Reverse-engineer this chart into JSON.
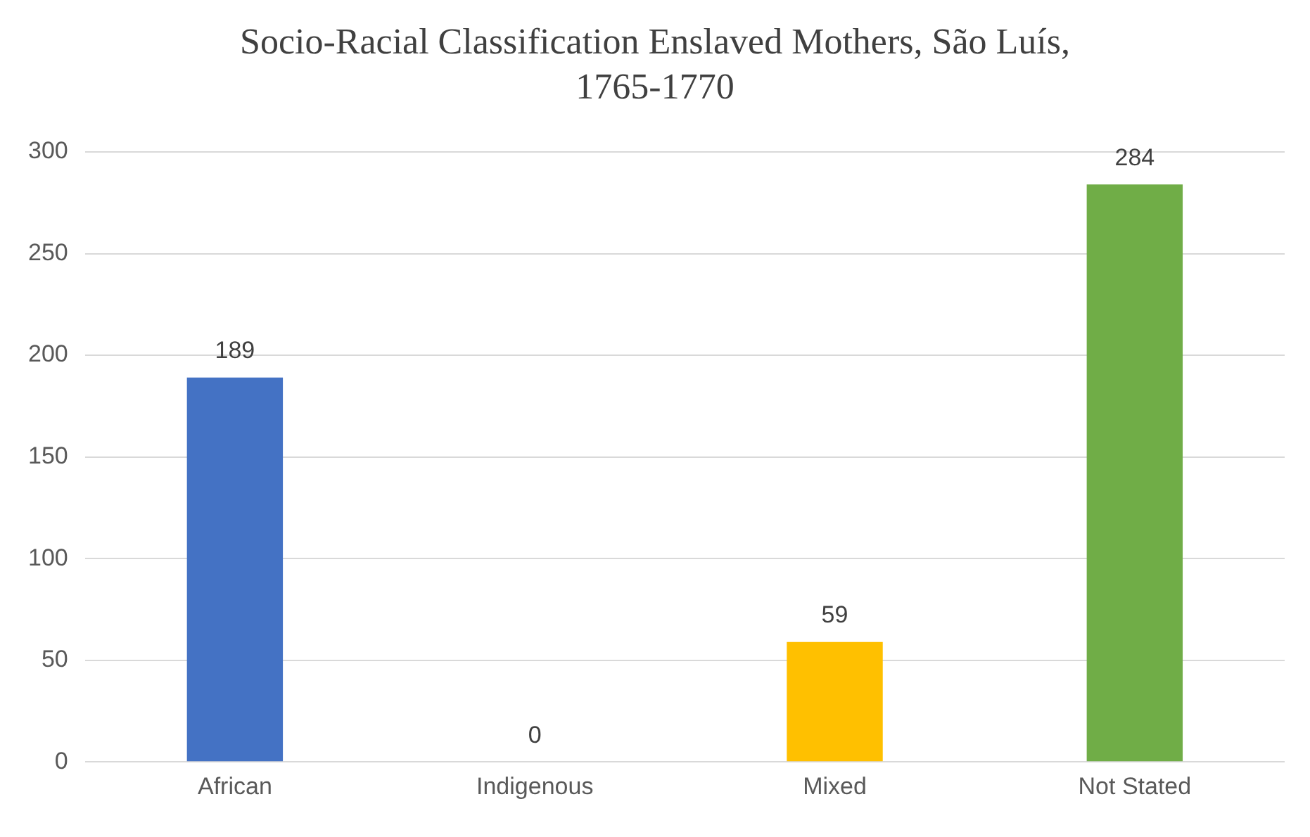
{
  "chart_data": {
    "type": "bar",
    "title": "Socio-Racial Classification Enslaved Mothers, São Luís, 1765-1770",
    "categories": [
      "African",
      "Indigenous",
      "Mixed",
      "Not Stated"
    ],
    "values": [
      189,
      0,
      59,
      284
    ],
    "colors": [
      "#4472c4",
      "#ed7d31",
      "#ffc000",
      "#70ad47"
    ],
    "ylim": [
      0,
      300
    ],
    "yticks": [
      0,
      50,
      100,
      150,
      200,
      250,
      300
    ],
    "grid": "y",
    "legend": false,
    "data_labels": true
  }
}
